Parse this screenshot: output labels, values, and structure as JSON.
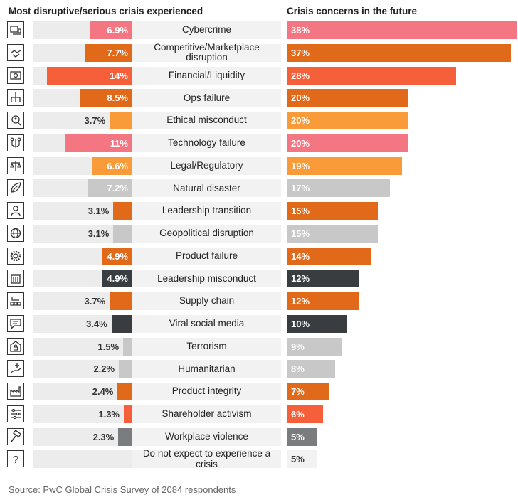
{
  "chart_data": {
    "type": "bar",
    "left_title": "Most disruptive/serious crisis experienced",
    "right_title": "Crisis concerns in the future",
    "source": "Source: PwC Global Crisis Survey of 2084 respondents",
    "units": "%",
    "colors": {
      "pink": "#f47683",
      "orange": "#e0691a",
      "red": "#f5603a",
      "amber": "#f89b38",
      "grey": "#c8c8c8",
      "dark": "#393d40",
      "midgrey": "#7a7d80",
      "track": "#ececec",
      "band": "#f2f2f2"
    },
    "rows": [
      {
        "category": "Cybercrime",
        "icon": "computer-icon",
        "experienced": 6.9,
        "experienced_label": "6.9%",
        "future": 38,
        "future_label": "38%",
        "color": "pink",
        "right_color": "pink"
      },
      {
        "category": "Competitive/Marketplace disruption",
        "icon": "handshake-icon",
        "experienced": 7.7,
        "experienced_label": "7.7%",
        "future": 37,
        "future_label": "37%",
        "color": "orange",
        "right_color": "orange"
      },
      {
        "category": "Financial/Liquidity",
        "icon": "banknote-icon",
        "experienced": 14,
        "experienced_label": "14%",
        "future": 28,
        "future_label": "28%",
        "color": "red",
        "right_color": "red"
      },
      {
        "category": "Ops failure",
        "icon": "network-icon",
        "experienced": 8.5,
        "experienced_label": "8.5%",
        "future": 20,
        "future_label": "20%",
        "color": "orange",
        "right_color": "orange"
      },
      {
        "category": "Ethical misconduct",
        "icon": "magnifier-person-icon",
        "experienced": 3.7,
        "experienced_label": "3.7%",
        "future": 20,
        "future_label": "20%",
        "color": "amber",
        "right_color": "amber"
      },
      {
        "category": "Technology failure",
        "icon": "circuit-icon",
        "experienced": 11,
        "experienced_label": "11%",
        "future": 20,
        "future_label": "20%",
        "color": "pink",
        "right_color": "pink"
      },
      {
        "category": "Legal/Regulatory",
        "icon": "scales-icon",
        "experienced": 6.6,
        "experienced_label": "6.6%",
        "future": 19,
        "future_label": "19%",
        "color": "amber",
        "right_color": "amber"
      },
      {
        "category": "Natural disaster",
        "icon": "leaf-icon",
        "experienced": 7.2,
        "experienced_label": "7.2%",
        "future": 17,
        "future_label": "17%",
        "color": "grey",
        "right_color": "grey"
      },
      {
        "category": "Leadership transition",
        "icon": "person-icon",
        "experienced": 3.1,
        "experienced_label": "3.1%",
        "future": 15,
        "future_label": "15%",
        "color": "orange",
        "right_color": "orange"
      },
      {
        "category": "Geopolitical disruption",
        "icon": "globe-icon",
        "experienced": 3.1,
        "experienced_label": "3.1%",
        "future": 15,
        "future_label": "15%",
        "color": "grey",
        "right_color": "grey"
      },
      {
        "category": "Product failure",
        "icon": "gear-icon",
        "experienced": 4.9,
        "experienced_label": "4.9%",
        "future": 14,
        "future_label": "14%",
        "color": "orange",
        "right_color": "orange"
      },
      {
        "category": "Leadership misconduct",
        "icon": "building-icon",
        "experienced": 4.9,
        "experienced_label": "4.9%",
        "future": 12,
        "future_label": "12%",
        "color": "dark",
        "right_color": "dark"
      },
      {
        "category": "Supply chain",
        "icon": "supply-chain-icon",
        "experienced": 3.7,
        "experienced_label": "3.7%",
        "future": 12,
        "future_label": "12%",
        "color": "orange",
        "right_color": "orange"
      },
      {
        "category": "Viral social media",
        "icon": "chat-icon",
        "experienced": 3.4,
        "experienced_label": "3.4%",
        "future": 10,
        "future_label": "10%",
        "color": "dark",
        "right_color": "dark"
      },
      {
        "category": "Terrorism",
        "icon": "lock-building-icon",
        "experienced": 1.5,
        "experienced_label": "1.5%",
        "future": 9,
        "future_label": "9%",
        "color": "grey",
        "right_color": "grey"
      },
      {
        "category": "Humanitarian",
        "icon": "hand-plus-icon",
        "experienced": 2.2,
        "experienced_label": "2.2%",
        "future": 8,
        "future_label": "8%",
        "color": "grey",
        "right_color": "grey"
      },
      {
        "category": "Product integrity",
        "icon": "factory-icon",
        "experienced": 2.4,
        "experienced_label": "2.4%",
        "future": 7,
        "future_label": "7%",
        "color": "orange",
        "right_color": "orange"
      },
      {
        "category": "Shareholder activism",
        "icon": "sliders-icon",
        "experienced": 1.3,
        "experienced_label": "1.3%",
        "future": 6,
        "future_label": "6%",
        "color": "red",
        "right_color": "red"
      },
      {
        "category": "Workplace violence",
        "icon": "hammer-icon",
        "experienced": 2.3,
        "experienced_label": "2.3%",
        "future": 5,
        "future_label": "5%",
        "color": "midgrey",
        "right_color": "midgrey"
      },
      {
        "category": "Do not expect to experience a crisis",
        "icon": "question-icon",
        "experienced": null,
        "experienced_label": "",
        "future": 5,
        "future_label": "5%",
        "color": "grey",
        "right_color": "band"
      }
    ]
  }
}
